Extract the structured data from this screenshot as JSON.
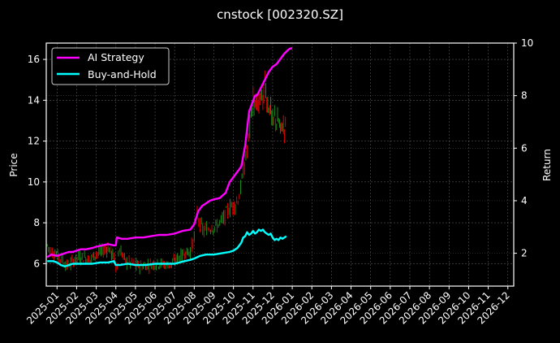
{
  "chart_data": {
    "type": "line",
    "title": "cnstock [002320.SZ]",
    "xlabel": "",
    "ylabel": "Price",
    "y2label": "Return",
    "grid": true,
    "legend_position": "upper left",
    "ylim": [
      4.9,
      16.8
    ],
    "y2lim": [
      0.75,
      10
    ],
    "yticks": [
      6,
      8,
      10,
      12,
      14,
      16
    ],
    "y2ticks": [
      2,
      4,
      6,
      8,
      10
    ],
    "xticks": [
      "2025-01",
      "2025-02",
      "2025-03",
      "2025-04",
      "2025-05",
      "2025-06",
      "2025-07",
      "2025-08",
      "2025-09",
      "2025-10",
      "2025-11",
      "2025-12",
      "2026-01",
      "2026-02",
      "2026-03",
      "2026-04",
      "2026-05",
      "2026-06",
      "2026-07",
      "2026-08",
      "2026-09",
      "2026-10",
      "2026-11",
      "2026-12"
    ],
    "xrange_months": [
      -0.55,
      23.3
    ],
    "colors": {
      "ai_strategy": "#ff00ff",
      "buy_and_hold": "#00ffff",
      "candle_up": "#1a8c1a",
      "candle_down": "#e00000",
      "background": "#000000",
      "grid": "#555555",
      "axis": "#ffffff"
    },
    "series": [
      {
        "name": "AI Strategy",
        "axis": "right",
        "x_months": [
          -0.5,
          -0.3,
          0.0,
          0.2,
          0.4,
          0.6,
          0.8,
          1.0,
          1.2,
          1.5,
          1.8,
          2.0,
          2.3,
          2.6,
          2.9,
          3.0,
          3.05,
          3.3,
          3.6,
          4.0,
          4.4,
          4.8,
          5.2,
          5.6,
          6.0,
          6.4,
          6.8,
          7.0,
          7.2,
          7.4,
          7.6,
          7.8,
          8.0,
          8.3,
          8.6,
          8.8,
          9.0,
          9.2,
          9.4,
          9.6,
          9.8,
          10.0,
          10.1,
          10.2,
          10.4,
          10.6,
          10.8,
          11.0,
          11.2,
          11.4,
          11.6,
          11.8,
          11.9,
          12.0
        ],
        "values": [
          1.85,
          1.95,
          1.9,
          1.95,
          2.0,
          2.05,
          2.05,
          2.1,
          2.15,
          2.15,
          2.2,
          2.25,
          2.3,
          2.35,
          2.3,
          2.3,
          2.6,
          2.55,
          2.55,
          2.6,
          2.6,
          2.65,
          2.7,
          2.7,
          2.75,
          2.85,
          2.9,
          3.1,
          3.6,
          3.8,
          3.9,
          4.0,
          4.05,
          4.1,
          4.3,
          4.7,
          4.9,
          5.1,
          5.3,
          6.1,
          7.4,
          7.8,
          8.0,
          8.0,
          8.3,
          8.6,
          8.9,
          9.1,
          9.2,
          9.4,
          9.6,
          9.75,
          9.8,
          9.8
        ]
      },
      {
        "name": "Buy-and-Hold",
        "axis": "right",
        "x_months": [
          -0.5,
          -0.2,
          0.0,
          0.2,
          0.4,
          0.6,
          0.8,
          1.0,
          1.4,
          1.8,
          2.2,
          2.6,
          2.9,
          3.0,
          3.2,
          3.6,
          4.0,
          4.5,
          5.0,
          5.5,
          6.0,
          6.5,
          6.8,
          7.0,
          7.3,
          7.6,
          8.0,
          8.4,
          8.8,
          9.0,
          9.2,
          9.4,
          9.5,
          9.6,
          9.7,
          9.8,
          9.9,
          10.0,
          10.1,
          10.2,
          10.3,
          10.4,
          10.5,
          10.6,
          10.7,
          10.8,
          10.9,
          11.0,
          11.1,
          11.2,
          11.3,
          11.4,
          11.5,
          11.6,
          11.7
        ],
        "values": [
          1.7,
          1.7,
          1.65,
          1.55,
          1.5,
          1.55,
          1.6,
          1.6,
          1.6,
          1.6,
          1.65,
          1.65,
          1.7,
          1.55,
          1.55,
          1.6,
          1.55,
          1.55,
          1.6,
          1.6,
          1.6,
          1.7,
          1.75,
          1.8,
          1.9,
          1.95,
          1.95,
          2.0,
          2.05,
          2.1,
          2.2,
          2.4,
          2.6,
          2.65,
          2.8,
          2.7,
          2.75,
          2.85,
          2.75,
          2.8,
          2.9,
          2.85,
          2.9,
          2.8,
          2.75,
          2.7,
          2.75,
          2.6,
          2.5,
          2.55,
          2.5,
          2.6,
          2.55,
          2.6,
          2.65
        ]
      },
      {
        "name": "Price (candles)",
        "axis": "left",
        "x_months": [
          -0.5,
          -0.3,
          -0.1,
          0.1,
          0.3,
          0.5,
          0.7,
          0.9,
          1.1,
          1.4,
          1.7,
          2.0,
          2.3,
          2.6,
          2.9,
          3.0,
          3.2,
          3.5,
          3.8,
          4.1,
          4.4,
          4.7,
          5.0,
          5.3,
          5.6,
          5.9,
          6.2,
          6.5,
          6.8,
          7.0,
          7.15,
          7.3,
          7.5,
          7.7,
          7.9,
          8.1,
          8.3,
          8.5,
          8.7,
          8.9,
          9.1,
          9.3,
          9.5,
          9.7,
          9.9,
          10.0,
          10.1,
          10.2,
          10.3,
          10.4,
          10.5,
          10.6,
          10.7,
          10.8,
          10.9,
          11.0,
          11.1,
          11.2,
          11.3,
          11.4,
          11.5,
          11.6,
          11.7
        ],
        "values": [
          6.9,
          6.6,
          6.5,
          6.3,
          6.2,
          5.9,
          6.0,
          6.2,
          6.3,
          6.3,
          6.2,
          6.5,
          6.6,
          6.8,
          6.3,
          5.8,
          6.7,
          6.1,
          6.0,
          5.9,
          5.9,
          5.95,
          6.0,
          6.0,
          5.95,
          6.0,
          6.3,
          6.5,
          6.6,
          7.3,
          8.5,
          7.9,
          7.6,
          7.7,
          7.8,
          7.8,
          8.0,
          8.2,
          8.6,
          8.8,
          8.9,
          9.3,
          10.5,
          11.5,
          13.3,
          14.2,
          13.5,
          13.9,
          13.6,
          14.5,
          13.8,
          15.0,
          14.0,
          13.7,
          13.6,
          12.8,
          13.2,
          12.9,
          13.0,
          12.5,
          12.8,
          12.6,
          12.9
        ]
      }
    ]
  }
}
